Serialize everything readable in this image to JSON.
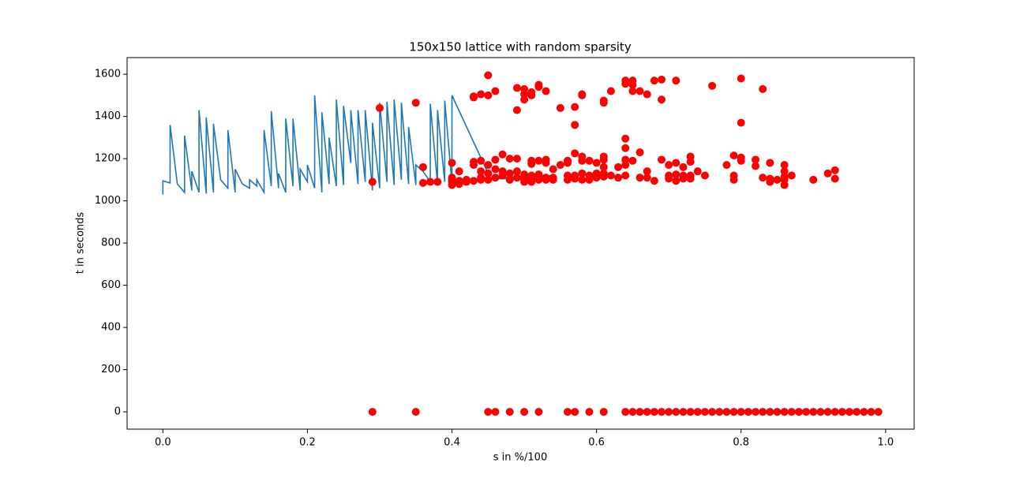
{
  "chart_data": {
    "type": "line",
    "title": "150x150 lattice with random sparsity",
    "xlabel": "s in %/100",
    "ylabel": "t in seconds",
    "xlim": [
      -0.0495,
      1.0395
    ],
    "ylim": [
      -82,
      1679
    ],
    "xticks": [
      {
        "value": 0,
        "label": "0.0"
      },
      0.2,
      0.4,
      0.6,
      0.8,
      {
        "value": 1,
        "label": "1.0"
      }
    ],
    "yticks": [
      0,
      200,
      400,
      600,
      800,
      1000,
      1200,
      1400,
      1600
    ],
    "series": [
      {
        "type": "line",
        "color": "#1f77b4",
        "x": [
          0,
          0,
          0.01,
          0.01,
          0.02,
          0.03,
          0.03,
          0.04,
          0.04,
          0.05,
          0.05,
          0.06,
          0.06,
          0.07,
          0.07,
          0.08,
          0.09,
          0.09,
          0.1,
          0.1,
          0.11,
          0.12,
          0.12,
          0.13,
          0.13,
          0.14,
          0.14,
          0.15,
          0.15,
          0.16,
          0.16,
          0.17,
          0.17,
          0.18,
          0.18,
          0.19,
          0.19,
          0.2,
          0.2,
          0.21,
          0.21,
          0.22,
          0.22,
          0.23,
          0.23,
          0.24,
          0.24,
          0.25,
          0.25,
          0.26,
          0.26,
          0.27,
          0.27,
          0.28,
          0.28,
          0.29,
          0.29,
          0.3,
          0.3,
          0.31,
          0.31,
          0.32,
          0.32,
          0.33,
          0.33,
          0.34,
          0.34,
          0.35,
          0.35,
          0.36,
          0.37,
          0.37,
          0.38,
          0.38,
          0.39,
          0.39,
          0.4,
          0.4,
          0.45,
          0.46,
          0.5,
          0.54,
          0.45,
          0.54
        ],
        "values": [
          1030,
          1095,
          1085,
          1360,
          1080,
          1040,
          1310,
          1050,
          1140,
          1040,
          1430,
          1035,
          1395,
          1040,
          1365,
          1100,
          1060,
          1335,
          1040,
          1150,
          1080,
          1060,
          1100,
          1070,
          1100,
          1040,
          1335,
          1070,
          1425,
          1060,
          1130,
          1040,
          1390,
          1070,
          1390,
          1050,
          1150,
          1090,
          1170,
          1060,
          1500,
          1040,
          1420,
          1080,
          1300,
          1070,
          1480,
          1075,
          1450,
          1180,
          1430,
          1080,
          1430,
          1090,
          1430,
          1050,
          1370,
          1060,
          1465,
          1090,
          1470,
          1075,
          1480,
          1100,
          1465,
          1080,
          1350,
          1075,
          1170,
          1140,
          1090,
          1460,
          1080,
          1430,
          1090,
          1475,
          1080,
          1500,
          1130,
          1105,
          1105,
          1120,
          1110,
          1115
        ]
      },
      {
        "type": "scatter",
        "color": "#ff0000",
        "x": [
          0.29,
          0.3,
          0.35,
          0.36,
          0.36,
          0.37,
          0.38,
          0.4,
          0.4,
          0.4,
          0.4,
          0.4,
          0.41,
          0.41,
          0.41,
          0.42,
          0.42,
          0.43,
          0.43,
          0.43,
          0.43,
          0.43,
          0.44,
          0.44,
          0.44,
          0.44,
          0.44,
          0.45,
          0.45,
          0.45,
          0.45,
          0.45,
          0.46,
          0.46,
          0.46,
          0.46,
          0.47,
          0.47,
          0.47,
          0.48,
          0.48,
          0.48,
          0.49,
          0.49,
          0.49,
          0.49,
          0.49,
          0.5,
          0.5,
          0.5,
          0.5,
          0.5,
          0.5,
          0.51,
          0.51,
          0.51,
          0.51,
          0.51,
          0.51,
          0.51,
          0.52,
          0.52,
          0.52,
          0.52,
          0.52,
          0.53,
          0.53,
          0.53,
          0.53,
          0.53,
          0.54,
          0.54,
          0.54,
          0.55,
          0.55,
          0.56,
          0.56,
          0.56,
          0.56,
          0.57,
          0.57,
          0.57,
          0.57,
          0.57,
          0.58,
          0.58,
          0.58,
          0.58,
          0.58,
          0.58,
          0.59,
          0.59,
          0.59,
          0.6,
          0.6,
          0.6,
          0.61,
          0.61,
          0.61,
          0.61,
          0.61,
          0.61,
          0.61,
          0.62,
          0.62,
          0.63,
          0.63,
          0.64,
          0.64,
          0.64,
          0.64,
          0.64,
          0.64,
          0.64,
          0.65,
          0.65,
          0.65,
          0.65,
          0.66,
          0.66,
          0.66,
          0.67,
          0.67,
          0.67,
          0.68,
          0.68,
          0.69,
          0.69,
          0.69,
          0.7,
          0.7,
          0.7,
          0.71,
          0.71,
          0.71,
          0.71,
          0.72,
          0.72,
          0.72,
          0.73,
          0.73,
          0.73,
          0.73,
          0.74,
          0.75,
          0.76,
          0.78,
          0.79,
          0.79,
          0.79,
          0.8,
          0.8,
          0.8,
          0.8,
          0.82,
          0.82,
          0.83,
          0.83,
          0.84,
          0.84,
          0.84,
          0.85,
          0.86,
          0.86,
          0.86,
          0.86,
          0.86,
          0.87,
          0.9,
          0.92,
          0.93,
          0.93,
          0.29,
          0.35,
          0.45,
          0.46,
          0.48,
          0.5,
          0.52,
          0.56,
          0.57,
          0.59,
          0.61,
          0.64,
          0.65,
          0.66,
          0.67,
          0.68,
          0.69,
          0.7,
          0.71,
          0.72,
          0.73,
          0.74,
          0.75,
          0.76,
          0.77,
          0.78,
          0.79,
          0.8,
          0.81,
          0.82,
          0.83,
          0.84,
          0.85,
          0.86,
          0.87,
          0.88,
          0.89,
          0.9,
          0.91,
          0.92,
          0.93,
          0.94,
          0.95,
          0.96,
          0.97,
          0.98,
          0.99
        ],
        "values": [
          1090,
          1440,
          1465,
          1160,
          1085,
          1090,
          1090,
          1180,
          1110,
          1090,
          1075,
          1100,
          1140,
          1080,
          1095,
          1100,
          1090,
          1490,
          1495,
          1185,
          1170,
          1095,
          1505,
          1190,
          1140,
          1110,
          1100,
          1595,
          1500,
          1170,
          1130,
          1100,
          1520,
          1195,
          1150,
          1110,
          1220,
          1140,
          1120,
          1200,
          1130,
          1100,
          1535,
          1430,
          1200,
          1140,
          1110,
          1530,
          1505,
          1480,
          1125,
          1100,
          1090,
          1515,
          1500,
          1190,
          1175,
          1120,
          1100,
          1090,
          1550,
          1540,
          1190,
          1125,
          1100,
          1520,
          1195,
          1180,
          1110,
          1100,
          1150,
          1110,
          1100,
          1440,
          1170,
          1190,
          1180,
          1120,
          1100,
          1445,
          1360,
          1225,
          1120,
          1105,
          1505,
          1500,
          1210,
          1190,
          1130,
          1100,
          1190,
          1120,
          1100,
          1180,
          1130,
          1110,
          1475,
          1465,
          1210,
          1195,
          1160,
          1130,
          1115,
          1520,
          1120,
          1110,
          1160,
          1570,
          1555,
          1295,
          1250,
          1195,
          1170,
          1120,
          1570,
          1550,
          1520,
          1190,
          1520,
          1230,
          1110,
          1505,
          1140,
          1110,
          1570,
          1095,
          1575,
          1480,
          1195,
          1170,
          1120,
          1105,
          1570,
          1180,
          1125,
          1095,
          1160,
          1120,
          1105,
          1210,
          1185,
          1120,
          1105,
          1140,
          1120,
          1545,
          1170,
          1215,
          1120,
          1100,
          1580,
          1370,
          1205,
          1190,
          1195,
          1165,
          1530,
          1110,
          1180,
          1105,
          1090,
          1100,
          1170,
          1140,
          1115,
          1100,
          1075,
          1120,
          1100,
          1130,
          1145,
          1105,
          0,
          0,
          0,
          0,
          0,
          0,
          0,
          0,
          0,
          0,
          0,
          0,
          0,
          0,
          0,
          0,
          0,
          0,
          0,
          0,
          0,
          0,
          0,
          0,
          0,
          0,
          0,
          0,
          0,
          0,
          0,
          0,
          0,
          0,
          0,
          0,
          0,
          0,
          0,
          0,
          0,
          0,
          0,
          0,
          0,
          0,
          0
        ]
      }
    ]
  }
}
